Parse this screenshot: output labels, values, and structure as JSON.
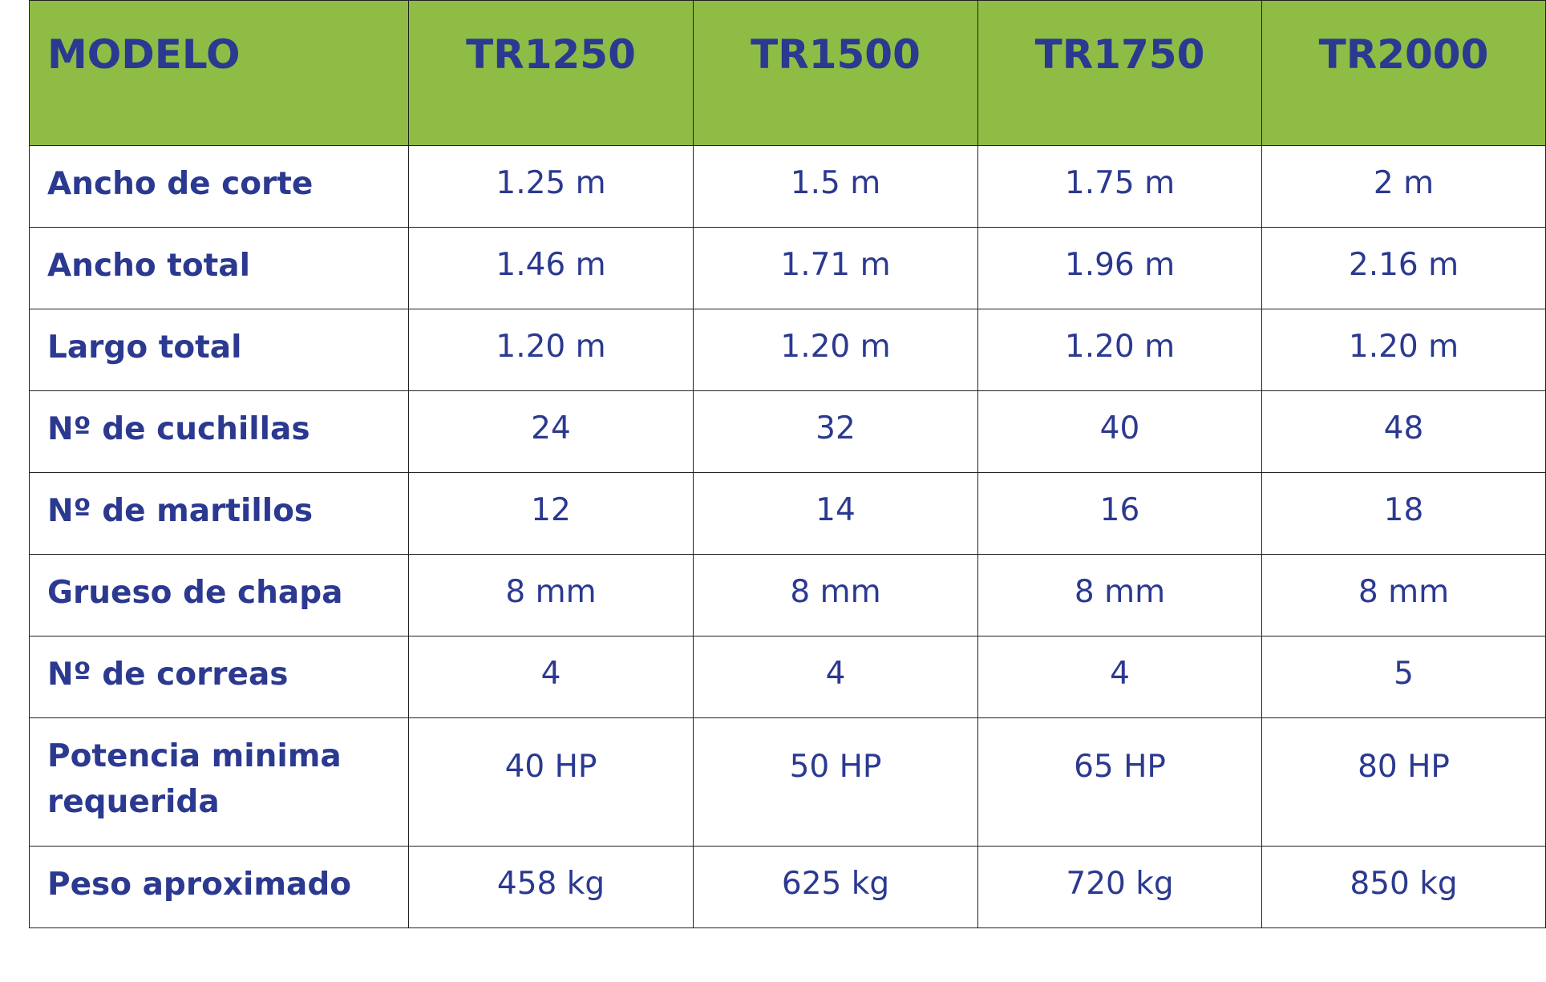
{
  "table": {
    "header": [
      "MODELO",
      "TR1250",
      "TR1500",
      "TR1750",
      "TR2000"
    ],
    "rows": [
      [
        "Ancho de corte",
        "1.25 m",
        "1.5 m",
        "1.75 m",
        "2 m"
      ],
      [
        "Ancho total",
        "1.46 m",
        "1.71 m",
        "1.96 m",
        "2.16 m"
      ],
      [
        "Largo total",
        "1.20 m",
        "1.20 m",
        "1.20 m",
        "1.20 m"
      ],
      [
        "Nº de cuchillas",
        "24",
        "32",
        "40",
        "48"
      ],
      [
        "Nº de martillos",
        "12",
        "14",
        "16",
        "18"
      ],
      [
        "Grueso de chapa",
        "8 mm",
        "8 mm",
        "8 mm",
        "8 mm"
      ],
      [
        "Nº de correas",
        "4",
        "4",
        "4",
        "5"
      ],
      [
        "Potencia minima requerida",
        "40 HP",
        "50 HP",
        "65 HP",
        "80 HP"
      ],
      [
        "Peso aproximado",
        "458 kg",
        "625 kg",
        "720 kg",
        "850 kg"
      ]
    ]
  }
}
